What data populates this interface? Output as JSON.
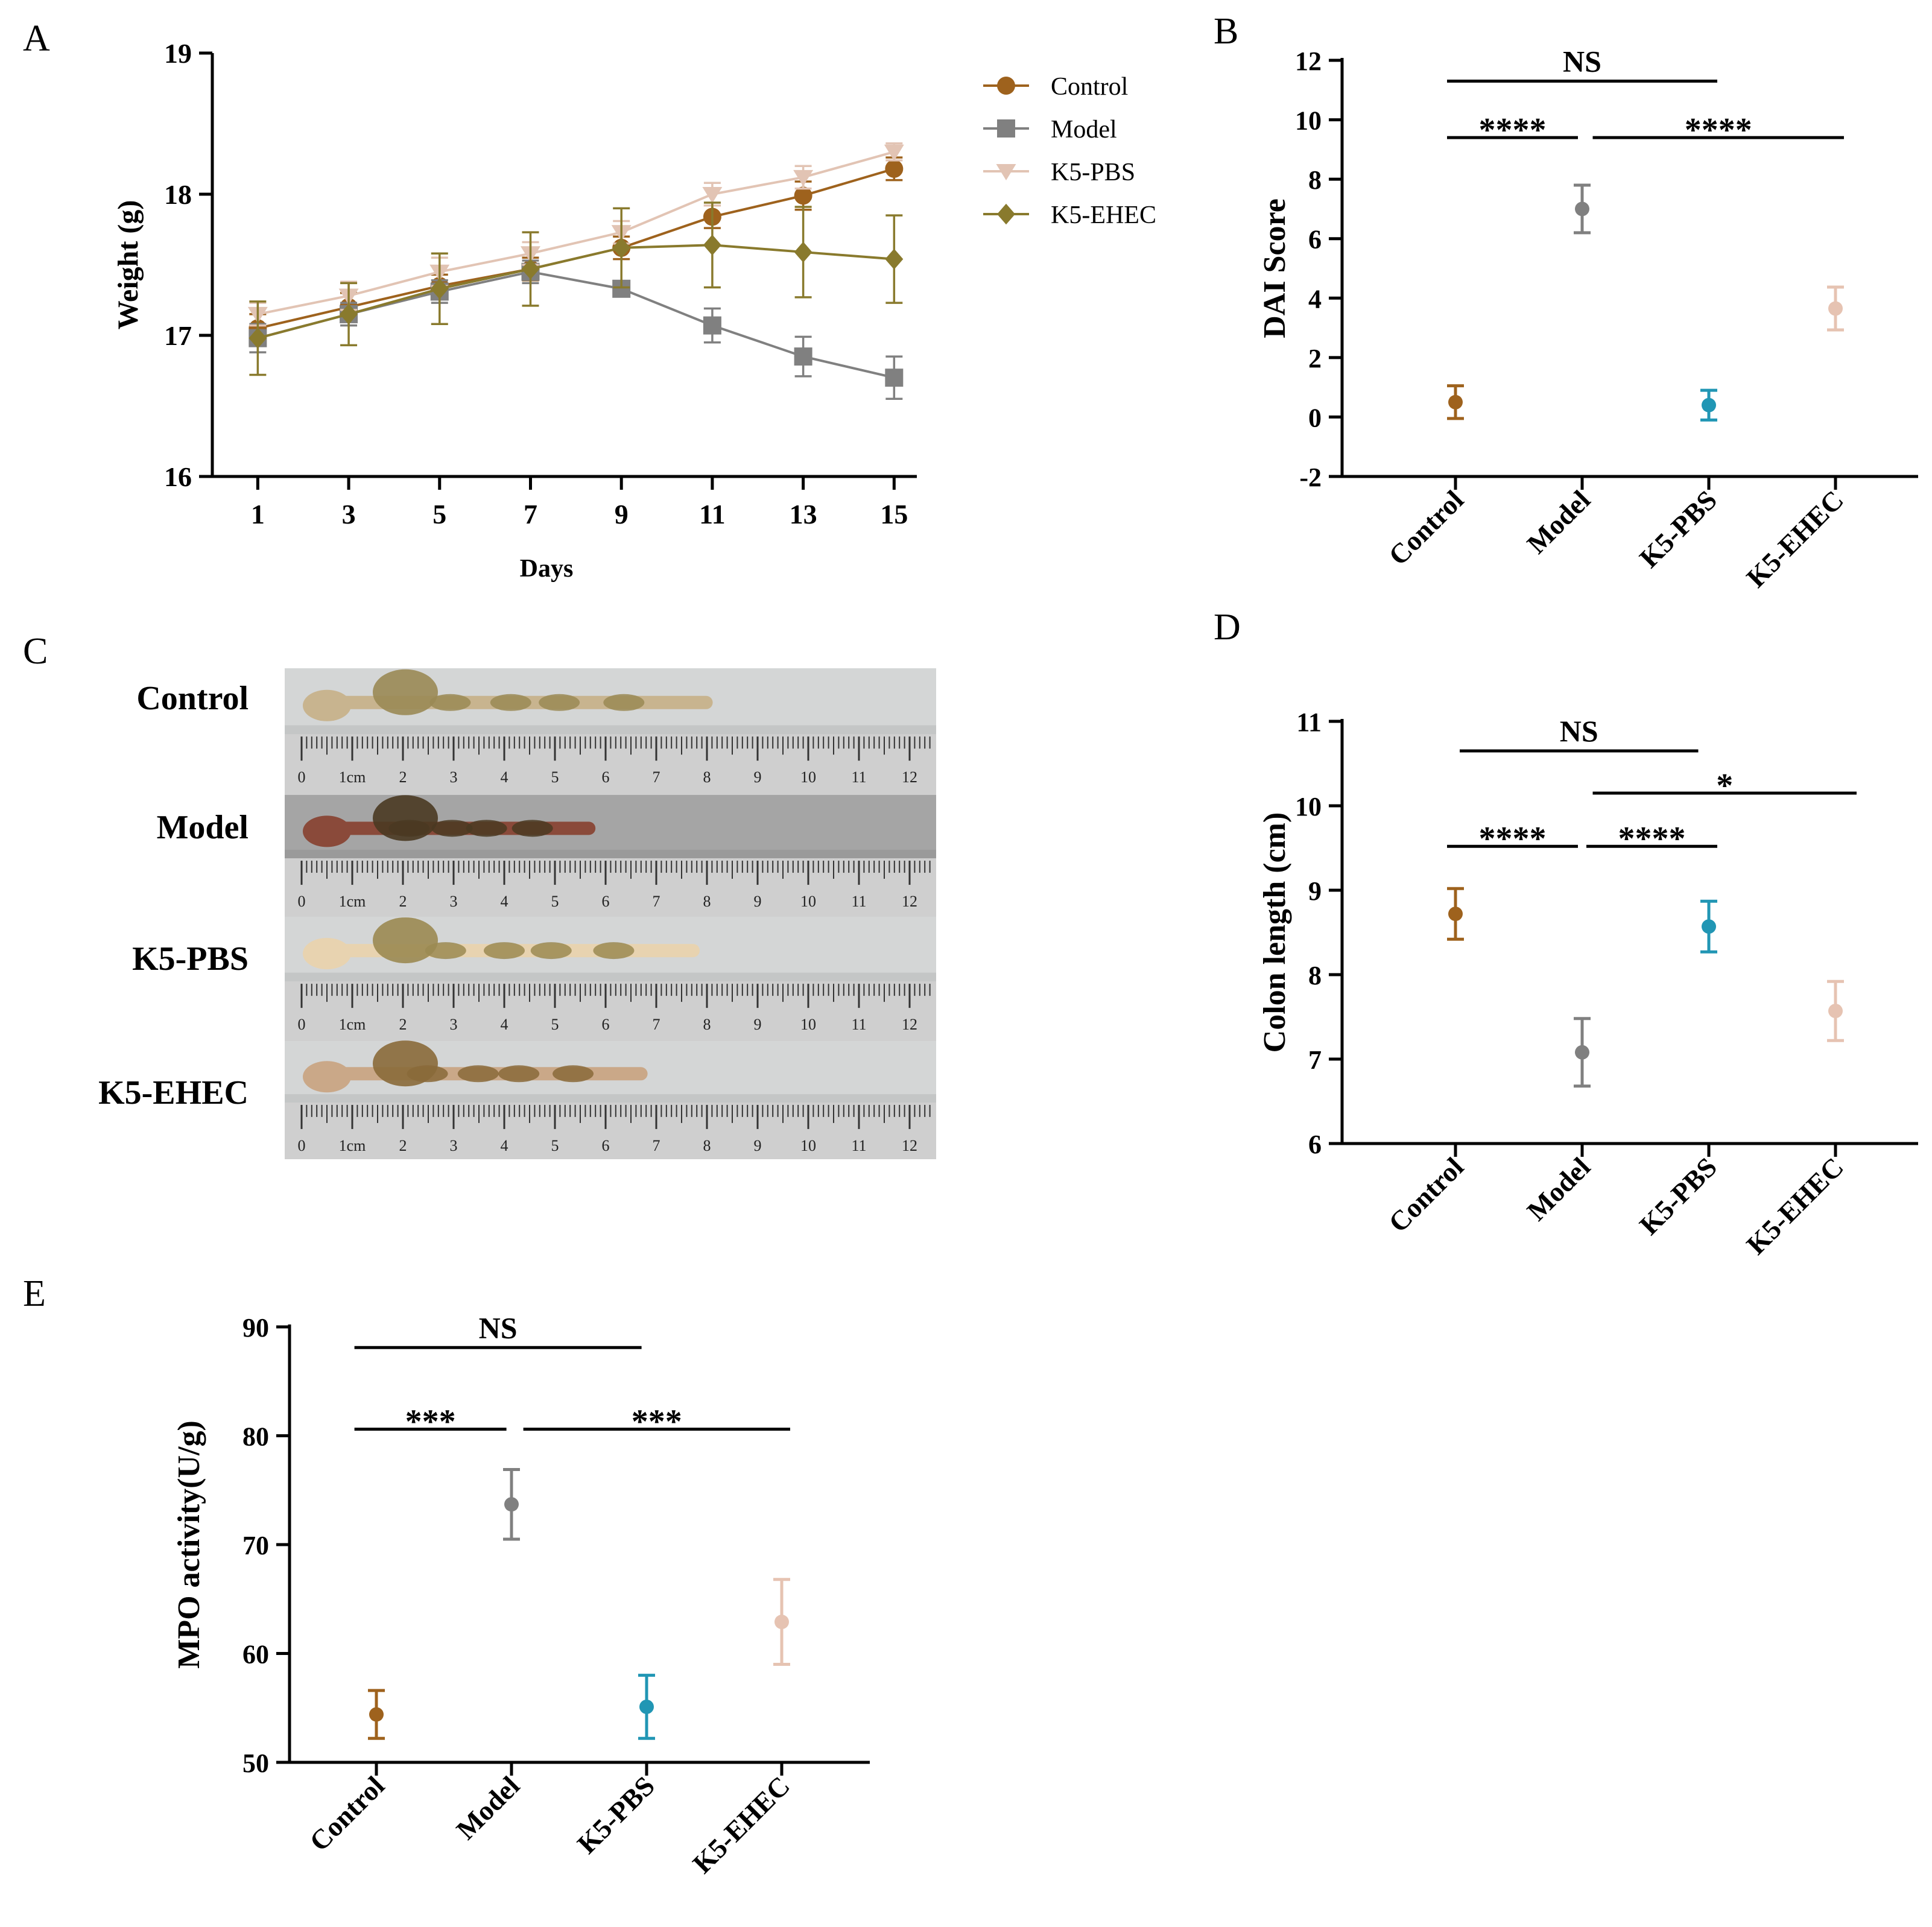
{
  "colors": {
    "control": "#9e621d",
    "model": "#808080",
    "k5pbs": "#e2c4b4",
    "k5ehec": "#897a2d",
    "k5pbs_dot": "#2196b4",
    "k5ehec_dot": "#e6c3b2",
    "axis": "#000000"
  },
  "panels": {
    "A": {
      "letter": "A"
    },
    "B": {
      "letter": "B"
    },
    "C": {
      "letter": "C"
    },
    "D": {
      "letter": "D"
    },
    "E": {
      "letter": "E"
    }
  },
  "photo": {
    "rows": [
      {
        "label": "Control",
        "colon_length_ratio": 0.62,
        "colon_color": "#c8b48f",
        "lump_color": "#9a8a55"
      },
      {
        "label": "Model",
        "colon_length_ratio": 0.44,
        "colon_color": "#8a4a3a",
        "lump_color": "#4a3a22"
      },
      {
        "label": "K5-PBS",
        "colon_length_ratio": 0.6,
        "colon_color": "#e8d3b0",
        "lump_color": "#9b8a52"
      },
      {
        "label": "K5-EHEC",
        "colon_length_ratio": 0.52,
        "colon_color": "#caa888",
        "lump_color": "#8a6a3a"
      }
    ],
    "ruler_labels": [
      "0",
      "1cm",
      "2",
      "3",
      "4",
      "5",
      "6",
      "7",
      "8",
      "9",
      "10",
      "11",
      "12"
    ]
  },
  "chart_data": [
    {
      "id": "A",
      "type": "line",
      "title": "",
      "xlabel": "Days",
      "ylabel": "Weight (g)",
      "x": [
        1,
        3,
        5,
        7,
        9,
        11,
        13,
        15
      ],
      "xlim": [
        0,
        15.5
      ],
      "ylim": [
        16,
        19
      ],
      "yticks": [
        16,
        17,
        18,
        19
      ],
      "xticks": [
        1,
        3,
        5,
        7,
        9,
        11,
        13,
        15
      ],
      "legend_position": "top-right",
      "series": [
        {
          "name": "Control",
          "marker": "circle",
          "color_key": "control",
          "values": [
            17.05,
            17.2,
            17.35,
            17.47,
            17.62,
            17.84,
            17.99,
            18.18
          ],
          "errors": [
            0.1,
            0.1,
            0.08,
            0.08,
            0.08,
            0.08,
            0.1,
            0.08
          ]
        },
        {
          "name": "Model",
          "marker": "square",
          "color_key": "model",
          "values": [
            16.98,
            17.15,
            17.31,
            17.45,
            17.33,
            17.07,
            16.85,
            16.7
          ],
          "errors": [
            0.1,
            0.08,
            0.08,
            0.08,
            0.05,
            0.12,
            0.14,
            0.15
          ]
        },
        {
          "name": "K5-PBS",
          "marker": "triangle-down",
          "color_key": "k5pbs",
          "values": [
            17.15,
            17.28,
            17.45,
            17.58,
            17.73,
            18.0,
            18.12,
            18.3
          ],
          "errors": [
            0.08,
            0.1,
            0.1,
            0.08,
            0.08,
            0.08,
            0.08,
            0.06
          ]
        },
        {
          "name": "K5-EHEC",
          "marker": "diamond",
          "color_key": "k5ehec",
          "values": [
            16.98,
            17.15,
            17.33,
            17.47,
            17.62,
            17.64,
            17.59,
            17.54
          ],
          "errors": [
            0.26,
            0.22,
            0.25,
            0.26,
            0.28,
            0.3,
            0.32,
            0.31
          ]
        }
      ]
    },
    {
      "id": "B",
      "type": "scatter",
      "ylabel": "DAI Score",
      "categories": [
        "Control",
        "Model",
        "K5-PBS",
        "K5-EHEC"
      ],
      "ylim": [
        -2,
        12
      ],
      "yticks": [
        -2,
        0,
        2,
        4,
        6,
        8,
        10,
        12
      ],
      "values": [
        0.5,
        7.0,
        0.4,
        3.65
      ],
      "errors": [
        0.55,
        0.8,
        0.5,
        0.72
      ],
      "point_color_keys": [
        "control",
        "model",
        "k5pbs_dot",
        "k5ehec_dot"
      ],
      "brackets": [
        {
          "from": 0,
          "to": 2,
          "y": 11.3,
          "label": "NS"
        },
        {
          "from": 0,
          "to": 0.9,
          "y": 9.4,
          "label": "****"
        },
        {
          "from": 1.15,
          "to": 3,
          "y": 9.4,
          "label": "****"
        }
      ]
    },
    {
      "id": "D",
      "type": "scatter",
      "ylabel": "Colon length (cm)",
      "categories": [
        "Control",
        "Model",
        "K5-PBS",
        "K5-EHEC"
      ],
      "ylim": [
        6,
        11
      ],
      "yticks": [
        6,
        7,
        8,
        9,
        10,
        11
      ],
      "values": [
        8.72,
        7.08,
        8.57,
        7.57
      ],
      "errors": [
        0.3,
        0.4,
        0.3,
        0.35
      ],
      "point_color_keys": [
        "control",
        "model",
        "k5pbs_dot",
        "k5ehec_dot"
      ],
      "brackets": [
        {
          "from": 0.1,
          "to": 1.85,
          "y": 10.65,
          "label": "NS"
        },
        {
          "from": 1.15,
          "to": 3.1,
          "y": 10.15,
          "label": "*"
        },
        {
          "from": 0,
          "to": 0.9,
          "y": 9.52,
          "label": "****"
        },
        {
          "from": 1.1,
          "to": 2.0,
          "y": 9.52,
          "label": "****"
        }
      ]
    },
    {
      "id": "E",
      "type": "scatter",
      "ylabel": "MPO activity(U/g)",
      "categories": [
        "Control",
        "Model",
        "K5-PBS",
        "K5-EHEC"
      ],
      "ylim": [
        50,
        90
      ],
      "yticks": [
        50,
        60,
        70,
        80,
        90
      ],
      "values": [
        54.4,
        73.7,
        55.1,
        62.9
      ],
      "errors": [
        2.2,
        3.2,
        2.9,
        3.9
      ],
      "point_color_keys": [
        "control",
        "model",
        "k5pbs_dot",
        "k5ehec_dot"
      ],
      "brackets": [
        {
          "from": -0.1,
          "to": 1.9,
          "y": 88.1,
          "label": "NS"
        },
        {
          "from": -0.1,
          "to": 0.9,
          "y": 80.6,
          "label": "***"
        },
        {
          "from": 1.15,
          "to": 3.0,
          "y": 80.6,
          "label": "***"
        }
      ]
    }
  ]
}
